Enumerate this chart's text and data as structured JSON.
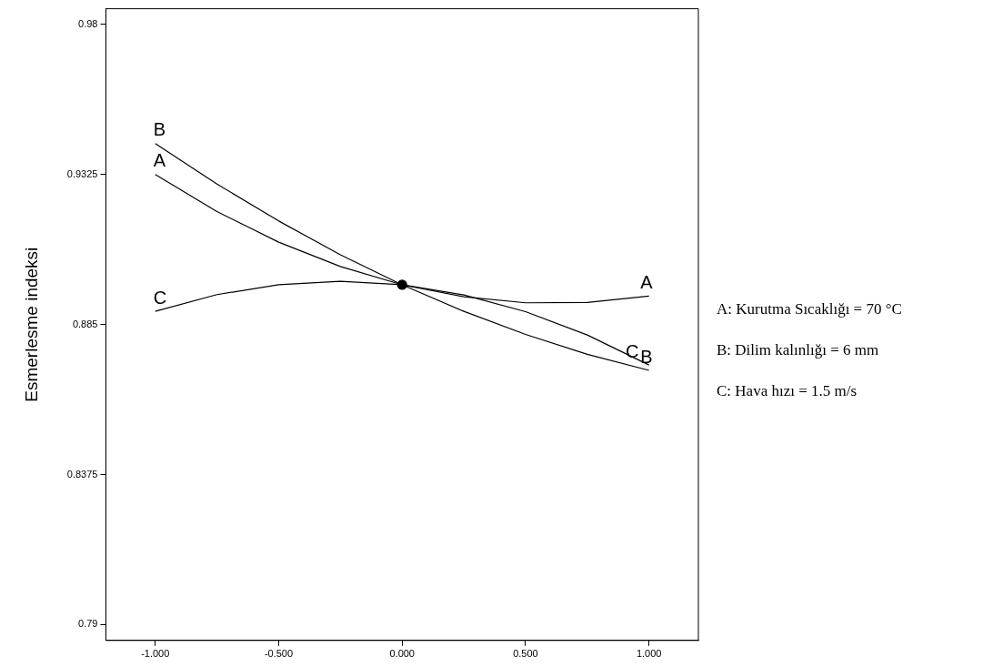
{
  "chart_data": {
    "type": "line",
    "ylabel": "Esmerlesme indeksi",
    "xlim": [
      -1.2,
      1.2
    ],
    "ylim": [
      0.785,
      0.985
    ],
    "xticks": [
      {
        "value": -1,
        "label": "-1.000"
      },
      {
        "value": -0.5,
        "label": "-0.500"
      },
      {
        "value": 0,
        "label": "0.000"
      },
      {
        "value": 0.5,
        "label": "0.500"
      },
      {
        "value": 1,
        "label": "1.000"
      }
    ],
    "yticks": [
      0.79,
      0.8375,
      0.885,
      0.9325,
      0.98
    ],
    "marker": "none",
    "line_style": "solid",
    "series": [
      {
        "name": "A",
        "color": "#000000",
        "x": [
          -1,
          -0.75,
          -0.5,
          -0.25,
          0,
          0.25,
          0.5,
          0.75,
          1
        ],
        "values": [
          0.9325,
          0.9208,
          0.9111,
          0.9034,
          0.8976,
          0.8938,
          0.8919,
          0.892,
          0.894
        ]
      },
      {
        "name": "B",
        "color": "#000000",
        "x": [
          -1,
          -0.75,
          -0.5,
          -0.25,
          0,
          0.25,
          0.5,
          0.75,
          1
        ],
        "values": [
          0.9423,
          0.9295,
          0.9178,
          0.9071,
          0.8976,
          0.8892,
          0.8819,
          0.8756,
          0.8705
        ]
      },
      {
        "name": "C",
        "color": "#000000",
        "x": [
          -1,
          -0.75,
          -0.5,
          -0.25,
          0,
          0.25,
          0.5,
          0.75,
          1
        ],
        "values": [
          0.8892,
          0.8945,
          0.8976,
          0.8987,
          0.8976,
          0.8944,
          0.8891,
          0.8817,
          0.8722
        ]
      },
      {
        "type": "scatter",
        "marker": "circle",
        "color": "#000000",
        "x": [
          0
        ],
        "values": [
          0.8976
        ]
      }
    ],
    "annotations": [
      "A: Kurutma Sıcaklığı = 70 °C",
      "B: Dilim kalınlığı = 6 mm",
      "C: Hava hızı = 1.5 m/s"
    ]
  }
}
